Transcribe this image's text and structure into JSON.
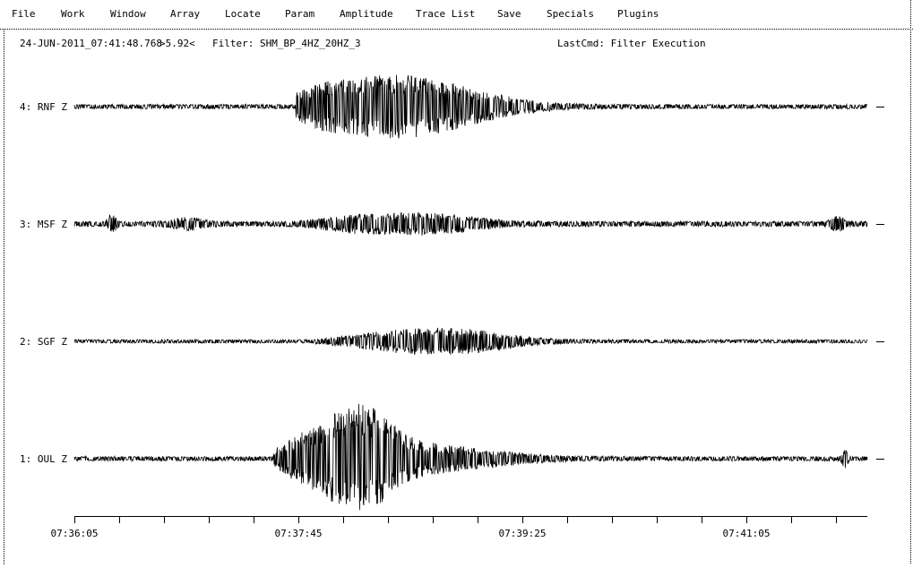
{
  "menu": {
    "items": [
      "File",
      "Work",
      "Window",
      "Array",
      "Locate",
      "Param",
      "Amplitude",
      "Trace List",
      "Save",
      "Specials",
      "Plugins"
    ]
  },
  "status": {
    "time": "24-JUN-2011_07:41:48.768",
    "zoom": ">5.92<",
    "filter": "Filter: SHM_BP_4HZ_20HZ_3",
    "last_command": "LastCmd: Filter Execution"
  },
  "traces": [
    {
      "label": "4: RNF Z"
    },
    {
      "label": "3: MSF Z"
    },
    {
      "label": "2: SGF Z"
    },
    {
      "label": "1: OUL Z"
    }
  ],
  "time_axis": {
    "labels": [
      "07:36:05",
      "07:37:45",
      "07:39:25",
      "07:41:05"
    ]
  }
}
